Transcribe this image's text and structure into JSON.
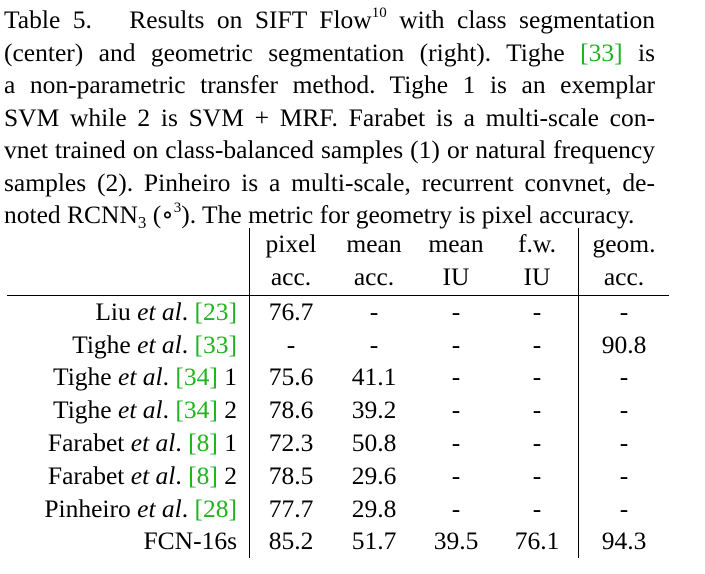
{
  "caption": {
    "label": "Table 5.",
    "lines": [
      {
        "text_a": "Results on SIFT Flow",
        "sup": "10",
        "text_b": " with class segmentation"
      },
      {
        "text_a": "(center) and geometric segmentation (right).  Tighe ",
        "cite": "[33]",
        "text_b": " is"
      },
      {
        "text": "a non-parametric transfer method.  Tighe 1 is an exemplar"
      },
      {
        "text": "SVM while 2 is SVM + MRF. Farabet is a multi-scale con-"
      },
      {
        "text": "vnet trained on class-balanced samples (1) or natural frequency"
      },
      {
        "text": "samples (2). Pinheiro is a multi-scale, recurrent convnet, de-"
      },
      {
        "text_a": "noted ",
        "rcnn": "RCNN",
        "rcnn_sub": "3",
        "text_b": " (",
        "circ": "∘",
        "circ_sup": "3",
        "text_c": "). The metric for geometry is pixel accuracy."
      }
    ]
  },
  "table": {
    "header_row1": [
      "",
      "pixel",
      "mean",
      "mean",
      "f.w.",
      "geom."
    ],
    "header_row2": [
      "",
      "acc.",
      "acc.",
      "IU",
      "IU",
      "acc."
    ],
    "rows": [
      {
        "name": "Liu",
        "etal": "et al",
        "dot": ".",
        "cite": "[23]",
        "suffix": "",
        "vals": [
          "76.7",
          "-",
          "-",
          "-",
          "-"
        ]
      },
      {
        "name": "Tighe",
        "etal": "et al",
        "dot": ".",
        "cite": "[33]",
        "suffix": "",
        "vals": [
          "-",
          "-",
          "-",
          "-",
          "90.8"
        ]
      },
      {
        "name": "Tighe",
        "etal": "et al",
        "dot": ".",
        "cite": "[34]",
        "suffix": " 1",
        "vals": [
          "75.6",
          "41.1",
          "-",
          "-",
          "-"
        ]
      },
      {
        "name": "Tighe",
        "etal": "et al",
        "dot": ".",
        "cite": "[34]",
        "suffix": " 2",
        "vals": [
          "78.6",
          "39.2",
          "-",
          "-",
          "-"
        ]
      },
      {
        "name": "Farabet",
        "etal": "et al",
        "dot": ".",
        "cite": "[8]",
        "suffix": " 1",
        "vals": [
          "72.3",
          "50.8",
          "-",
          "-",
          "-"
        ]
      },
      {
        "name": "Farabet",
        "etal": "et al",
        "dot": ".",
        "cite": "[8]",
        "suffix": " 2",
        "vals": [
          "78.5",
          "29.6",
          "-",
          "-",
          "-"
        ]
      },
      {
        "name": "Pinheiro",
        "etal": "et al",
        "dot": ".",
        "cite": "[28]",
        "suffix": "",
        "vals": [
          "77.7",
          "29.8",
          "-",
          "-",
          "-"
        ]
      }
    ],
    "final_row": {
      "name": "FCN-16s",
      "vals": [
        "85.2",
        "51.7",
        "39.5",
        "76.1",
        "94.3"
      ]
    }
  }
}
